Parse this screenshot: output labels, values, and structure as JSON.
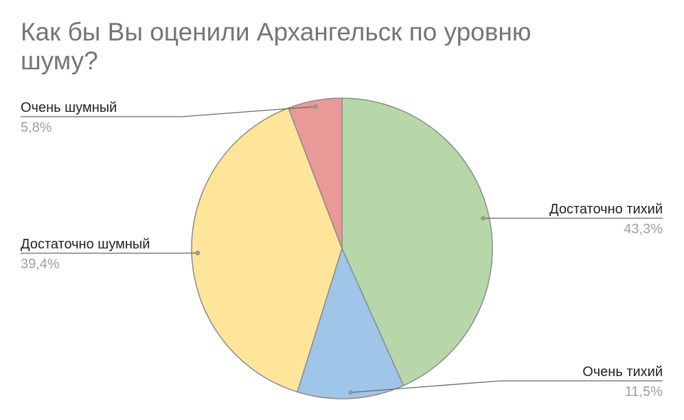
{
  "chart_data": {
    "type": "pie",
    "title": "Как бы Вы оценили Архангельск по уровню шуму?",
    "categories": [
      "Достаточно тихий",
      "Очень тихий",
      "Достаточно шумный",
      "Очень шумный"
    ],
    "values": [
      43.3,
      11.5,
      39.4,
      5.8
    ],
    "value_labels": [
      "43,3%",
      "11,5%",
      "39,4%",
      "5,8%"
    ],
    "colors": [
      "#b7d7a8",
      "#9fc5e8",
      "#ffe599",
      "#ea9999"
    ]
  }
}
